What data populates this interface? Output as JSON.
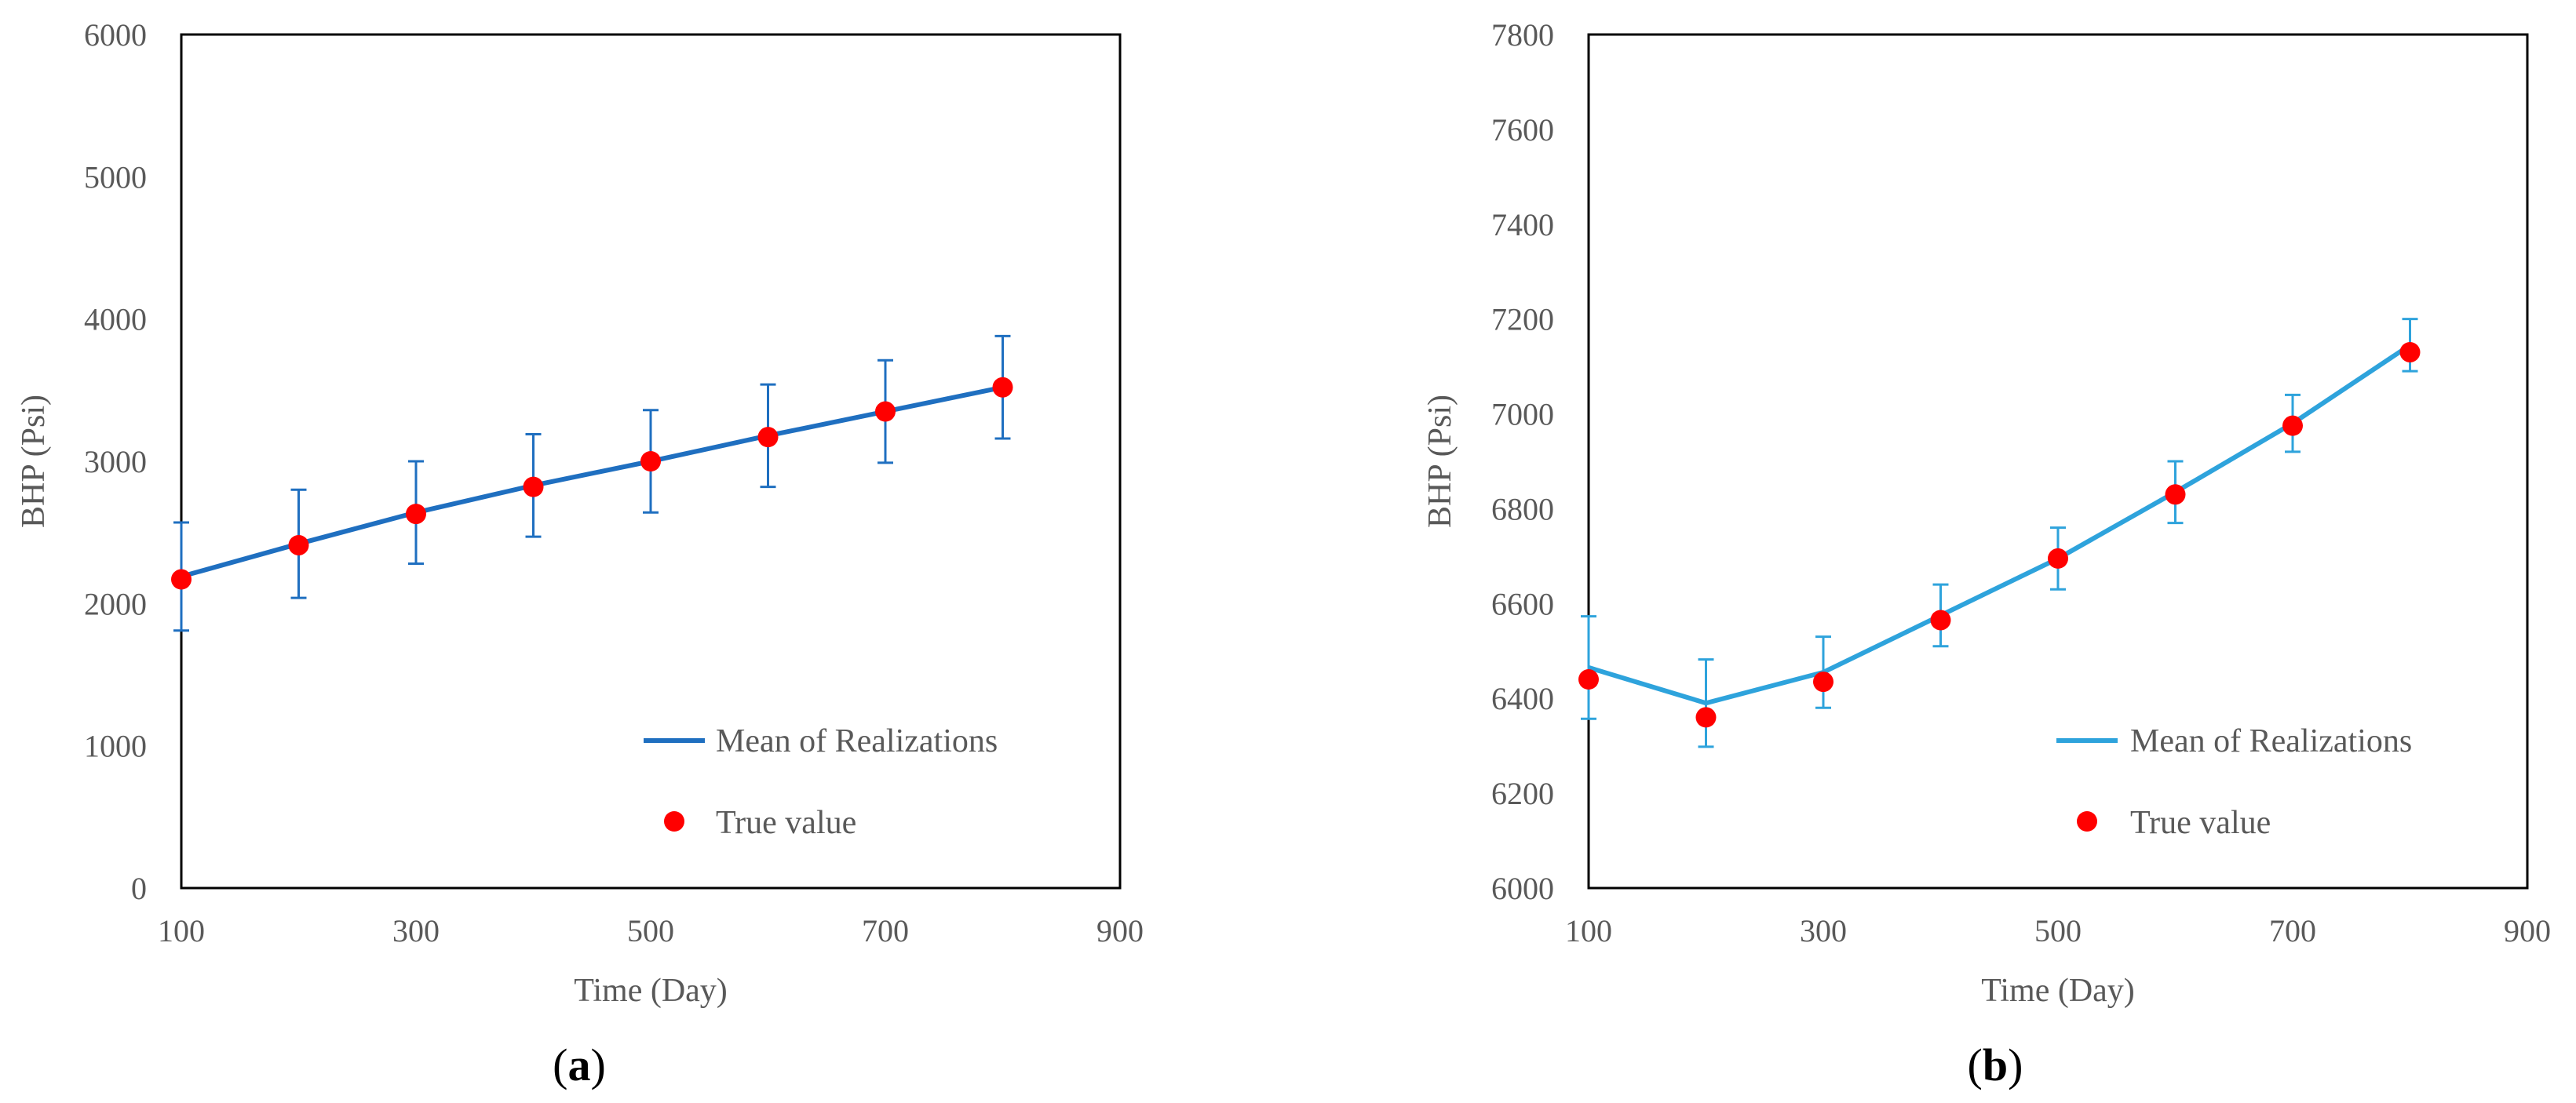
{
  "colors": {
    "series_a": "#1f6fc0",
    "series_b": "#2ea3dc",
    "true_value": "#ff0000",
    "frame": "#000000",
    "text": "#595959"
  },
  "chart_data": [
    {
      "type": "line",
      "panel": "(a)",
      "panel_paren_open": "(",
      "panel_letter": "a",
      "panel_paren_close": ")",
      "xlabel": "Time (Day)",
      "ylabel": "BHP (Psi)",
      "xlim": [
        100,
        900
      ],
      "ylim": [
        0,
        6000
      ],
      "x_ticks": [
        100,
        300,
        500,
        700,
        900
      ],
      "y_ticks": [
        0,
        1000,
        2000,
        3000,
        4000,
        5000,
        6000
      ],
      "legend_position": "bottom-right",
      "series": [
        {
          "name": "Mean of Realizations",
          "style": "line-with-errorbars",
          "x": [
            100,
            200,
            300,
            400,
            500,
            600,
            700,
            800
          ],
          "values": [
            2190,
            2420,
            2640,
            2830,
            3000,
            3180,
            3350,
            3520
          ],
          "error": [
            380,
            380,
            360,
            360,
            360,
            360,
            360,
            360
          ]
        },
        {
          "name": "True value",
          "style": "markers",
          "x": [
            100,
            200,
            300,
            400,
            500,
            600,
            700,
            800
          ],
          "values": [
            2170,
            2410,
            2630,
            2820,
            3000,
            3170,
            3350,
            3520
          ]
        }
      ]
    },
    {
      "type": "line",
      "panel": "(b)",
      "panel_paren_open": "(",
      "panel_letter": "b",
      "panel_paren_close": ")",
      "xlabel": "Time (Day)",
      "ylabel": "BHP (Psi)",
      "xlim": [
        100,
        900
      ],
      "ylim": [
        6000,
        7800
      ],
      "x_ticks": [
        100,
        300,
        500,
        700,
        900
      ],
      "y_ticks": [
        6000,
        6200,
        6400,
        6600,
        6800,
        7000,
        7200,
        7400,
        7600,
        7800
      ],
      "legend_position": "bottom-right",
      "series": [
        {
          "name": "Mean of Realizations",
          "style": "line-with-errorbars",
          "x": [
            100,
            200,
            300,
            400,
            500,
            600,
            700,
            800
          ],
          "values": [
            6465,
            6390,
            6455,
            6575,
            6695,
            6835,
            6980,
            7145
          ],
          "error": [
            108,
            92,
            75,
            65,
            65,
            65,
            60,
            55
          ]
        },
        {
          "name": "True value",
          "style": "markers",
          "x": [
            100,
            200,
            300,
            400,
            500,
            600,
            700,
            800
          ],
          "values": [
            6440,
            6360,
            6435,
            6565,
            6695,
            6830,
            6975,
            7130
          ]
        }
      ]
    }
  ]
}
